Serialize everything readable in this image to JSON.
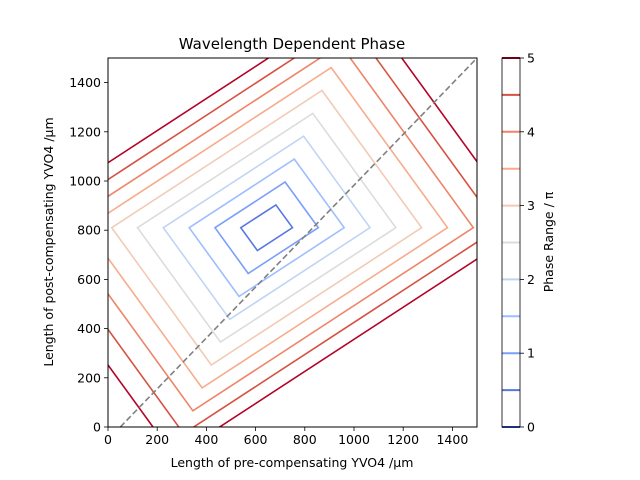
{
  "chart_data": {
    "type": "contour",
    "title": "Wavelength Dependent Phase",
    "xlabel": "Length of pre-compensating YVO4 /µm",
    "ylabel": "Length of post-compensating YVO4 /µm",
    "colorbar_label": "Phase Range / π",
    "xlim": [
      0,
      1500
    ],
    "ylim": [
      0,
      1500
    ],
    "x_ticks": [
      0,
      200,
      400,
      600,
      800,
      1000,
      1200,
      1400
    ],
    "y_ticks": [
      0,
      200,
      400,
      600,
      800,
      1000,
      1200,
      1400
    ],
    "colorbar_ticks": [
      0,
      1,
      2,
      3,
      4,
      5
    ],
    "levels": [
      {
        "value": 0.0,
        "color": "#3b4cc0"
      },
      {
        "value": 0.5,
        "color": "#5977e3"
      },
      {
        "value": 1.0,
        "color": "#7b9ff9"
      },
      {
        "value": 1.5,
        "color": "#9ebeff"
      },
      {
        "value": 2.0,
        "color": "#c0d4f5"
      },
      {
        "value": 2.5,
        "color": "#dddcdc"
      },
      {
        "value": 3.0,
        "color": "#f2cbb7"
      },
      {
        "value": 3.5,
        "color": "#f7ac8e"
      },
      {
        "value": 4.0,
        "color": "#ee8468"
      },
      {
        "value": 4.5,
        "color": "#d65244"
      },
      {
        "value": 5.0,
        "color": "#b40426"
      }
    ],
    "contour_center": [
      645,
      810
    ],
    "diagonal_line": {
      "style": "dashed",
      "color": "#808080",
      "x": [
        50,
        1500
      ],
      "y": [
        0,
        1500
      ]
    },
    "grid": false
  }
}
